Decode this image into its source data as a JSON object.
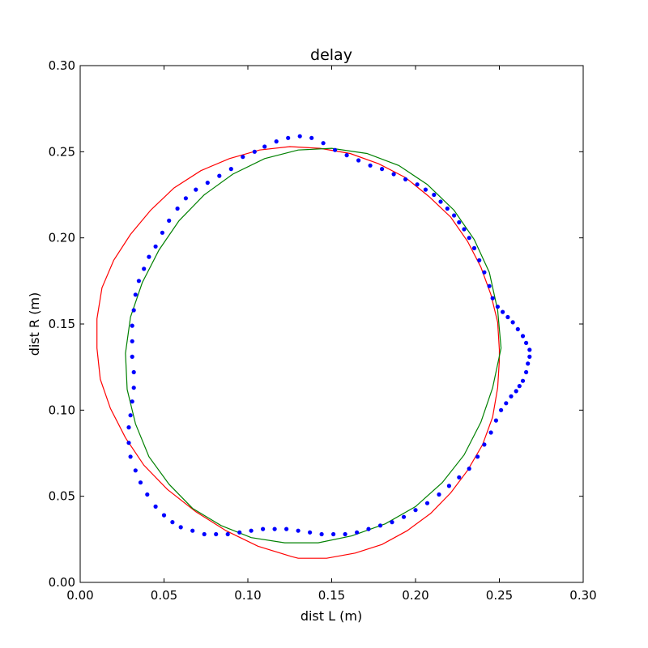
{
  "chart_data": {
    "type": "scatter",
    "title": "delay",
    "xlabel": "dist L (m)",
    "ylabel": "dist R (m)",
    "xlim": [
      0.0,
      0.3
    ],
    "ylim": [
      0.0,
      0.3
    ],
    "xticks": [
      {
        "value": 0.0,
        "label": "0.00"
      },
      {
        "value": 0.05,
        "label": "0.05"
      },
      {
        "value": 0.1,
        "label": "0.10"
      },
      {
        "value": 0.15,
        "label": "0.15"
      },
      {
        "value": 0.2,
        "label": "0.20"
      },
      {
        "value": 0.25,
        "label": "0.25"
      },
      {
        "value": 0.3,
        "label": "0.30"
      }
    ],
    "yticks": [
      {
        "value": 0.0,
        "label": "0.00"
      },
      {
        "value": 0.05,
        "label": "0.05"
      },
      {
        "value": 0.1,
        "label": "0.10"
      },
      {
        "value": 0.15,
        "label": "0.15"
      },
      {
        "value": 0.2,
        "label": "0.20"
      },
      {
        "value": 0.25,
        "label": "0.25"
      },
      {
        "value": 0.3,
        "label": "0.30"
      }
    ],
    "grid": false,
    "legend": "none",
    "series": [
      {
        "kind": "line",
        "color": "#ff0000",
        "points": [
          [
            0.25,
            0.135
          ],
          [
            0.249,
            0.151
          ],
          [
            0.245,
            0.167
          ],
          [
            0.239,
            0.183
          ],
          [
            0.231,
            0.198
          ],
          [
            0.221,
            0.212
          ],
          [
            0.208,
            0.224
          ],
          [
            0.194,
            0.235
          ],
          [
            0.178,
            0.243
          ],
          [
            0.161,
            0.249
          ],
          [
            0.143,
            0.252
          ],
          [
            0.125,
            0.253
          ],
          [
            0.107,
            0.251
          ],
          [
            0.089,
            0.246
          ],
          [
            0.072,
            0.239
          ],
          [
            0.056,
            0.229
          ],
          [
            0.042,
            0.216
          ],
          [
            0.03,
            0.202
          ],
          [
            0.02,
            0.187
          ],
          [
            0.013,
            0.171
          ],
          [
            0.01,
            0.153
          ],
          [
            0.01,
            0.136
          ],
          [
            0.012,
            0.118
          ],
          [
            0.018,
            0.101
          ],
          [
            0.027,
            0.084
          ],
          [
            0.038,
            0.068
          ],
          [
            0.052,
            0.054
          ],
          [
            0.069,
            0.041
          ],
          [
            0.087,
            0.03
          ],
          [
            0.106,
            0.021
          ],
          [
            0.126,
            0.015
          ],
          [
            0.13,
            0.014
          ],
          [
            0.147,
            0.014
          ],
          [
            0.164,
            0.017
          ],
          [
            0.18,
            0.022
          ],
          [
            0.195,
            0.03
          ],
          [
            0.209,
            0.04
          ],
          [
            0.221,
            0.052
          ],
          [
            0.231,
            0.065
          ],
          [
            0.24,
            0.08
          ],
          [
            0.246,
            0.096
          ],
          [
            0.249,
            0.113
          ],
          [
            0.25,
            0.129
          ],
          [
            0.25,
            0.135
          ]
        ]
      },
      {
        "kind": "line",
        "color": "#008000",
        "points": [
          [
            0.251,
            0.136
          ],
          [
            0.249,
            0.158
          ],
          [
            0.244,
            0.18
          ],
          [
            0.235,
            0.199
          ],
          [
            0.223,
            0.216
          ],
          [
            0.207,
            0.231
          ],
          [
            0.19,
            0.242
          ],
          [
            0.171,
            0.249
          ],
          [
            0.15,
            0.252
          ],
          [
            0.13,
            0.251
          ],
          [
            0.11,
            0.246
          ],
          [
            0.091,
            0.237
          ],
          [
            0.074,
            0.225
          ],
          [
            0.059,
            0.21
          ],
          [
            0.047,
            0.193
          ],
          [
            0.037,
            0.174
          ],
          [
            0.03,
            0.154
          ],
          [
            0.027,
            0.133
          ],
          [
            0.028,
            0.112
          ],
          [
            0.033,
            0.092
          ],
          [
            0.041,
            0.073
          ],
          [
            0.053,
            0.057
          ],
          [
            0.067,
            0.043
          ],
          [
            0.084,
            0.033
          ],
          [
            0.102,
            0.026
          ],
          [
            0.122,
            0.023
          ],
          [
            0.142,
            0.023
          ],
          [
            0.162,
            0.027
          ],
          [
            0.182,
            0.034
          ],
          [
            0.2,
            0.044
          ],
          [
            0.216,
            0.058
          ],
          [
            0.229,
            0.074
          ],
          [
            0.239,
            0.093
          ],
          [
            0.246,
            0.113
          ],
          [
            0.251,
            0.136
          ]
        ]
      },
      {
        "kind": "scatter",
        "color": "#0000ff",
        "points": [
          [
            0.097,
            0.247
          ],
          [
            0.104,
            0.25
          ],
          [
            0.11,
            0.253
          ],
          [
            0.117,
            0.256
          ],
          [
            0.124,
            0.258
          ],
          [
            0.131,
            0.259
          ],
          [
            0.138,
            0.258
          ],
          [
            0.145,
            0.255
          ],
          [
            0.152,
            0.251
          ],
          [
            0.159,
            0.248
          ],
          [
            0.166,
            0.245
          ],
          [
            0.173,
            0.242
          ],
          [
            0.18,
            0.24
          ],
          [
            0.187,
            0.237
          ],
          [
            0.194,
            0.234
          ],
          [
            0.201,
            0.231
          ],
          [
            0.206,
            0.228
          ],
          [
            0.211,
            0.225
          ],
          [
            0.215,
            0.221
          ],
          [
            0.219,
            0.217
          ],
          [
            0.223,
            0.213
          ],
          [
            0.226,
            0.209
          ],
          [
            0.229,
            0.205
          ],
          [
            0.232,
            0.2
          ],
          [
            0.235,
            0.194
          ],
          [
            0.238,
            0.187
          ],
          [
            0.241,
            0.18
          ],
          [
            0.244,
            0.172
          ],
          [
            0.246,
            0.165
          ],
          [
            0.249,
            0.16
          ],
          [
            0.252,
            0.157
          ],
          [
            0.255,
            0.154
          ],
          [
            0.258,
            0.151
          ],
          [
            0.261,
            0.147
          ],
          [
            0.264,
            0.143
          ],
          [
            0.266,
            0.139
          ],
          [
            0.268,
            0.135
          ],
          [
            0.268,
            0.131
          ],
          [
            0.267,
            0.127
          ],
          [
            0.266,
            0.122
          ],
          [
            0.264,
            0.117
          ],
          [
            0.262,
            0.114
          ],
          [
            0.26,
            0.111
          ],
          [
            0.257,
            0.108
          ],
          [
            0.254,
            0.104
          ],
          [
            0.251,
            0.1
          ],
          [
            0.248,
            0.094
          ],
          [
            0.245,
            0.087
          ],
          [
            0.241,
            0.08
          ],
          [
            0.237,
            0.073
          ],
          [
            0.232,
            0.066
          ],
          [
            0.226,
            0.061
          ],
          [
            0.22,
            0.056
          ],
          [
            0.214,
            0.051
          ],
          [
            0.207,
            0.046
          ],
          [
            0.2,
            0.042
          ],
          [
            0.193,
            0.038
          ],
          [
            0.186,
            0.035
          ],
          [
            0.179,
            0.033
          ],
          [
            0.172,
            0.031
          ],
          [
            0.165,
            0.029
          ],
          [
            0.158,
            0.028
          ],
          [
            0.151,
            0.028
          ],
          [
            0.144,
            0.028
          ],
          [
            0.137,
            0.029
          ],
          [
            0.13,
            0.03
          ],
          [
            0.123,
            0.031
          ],
          [
            0.116,
            0.031
          ],
          [
            0.109,
            0.031
          ],
          [
            0.102,
            0.03
          ],
          [
            0.095,
            0.029
          ],
          [
            0.088,
            0.028
          ],
          [
            0.081,
            0.028
          ],
          [
            0.074,
            0.028
          ],
          [
            0.067,
            0.03
          ],
          [
            0.06,
            0.032
          ],
          [
            0.055,
            0.035
          ],
          [
            0.05,
            0.039
          ],
          [
            0.045,
            0.044
          ],
          [
            0.04,
            0.051
          ],
          [
            0.036,
            0.058
          ],
          [
            0.033,
            0.065
          ],
          [
            0.03,
            0.073
          ],
          [
            0.029,
            0.081
          ],
          [
            0.029,
            0.09
          ],
          [
            0.03,
            0.097
          ],
          [
            0.031,
            0.105
          ],
          [
            0.032,
            0.113
          ],
          [
            0.032,
            0.122
          ],
          [
            0.031,
            0.131
          ],
          [
            0.031,
            0.14
          ],
          [
            0.031,
            0.149
          ],
          [
            0.032,
            0.158
          ],
          [
            0.033,
            0.167
          ],
          [
            0.035,
            0.175
          ],
          [
            0.038,
            0.182
          ],
          [
            0.041,
            0.189
          ],
          [
            0.045,
            0.195
          ],
          [
            0.049,
            0.203
          ],
          [
            0.053,
            0.21
          ],
          [
            0.058,
            0.217
          ],
          [
            0.063,
            0.223
          ],
          [
            0.069,
            0.228
          ],
          [
            0.076,
            0.232
          ],
          [
            0.083,
            0.236
          ],
          [
            0.09,
            0.24
          ]
        ]
      }
    ]
  }
}
